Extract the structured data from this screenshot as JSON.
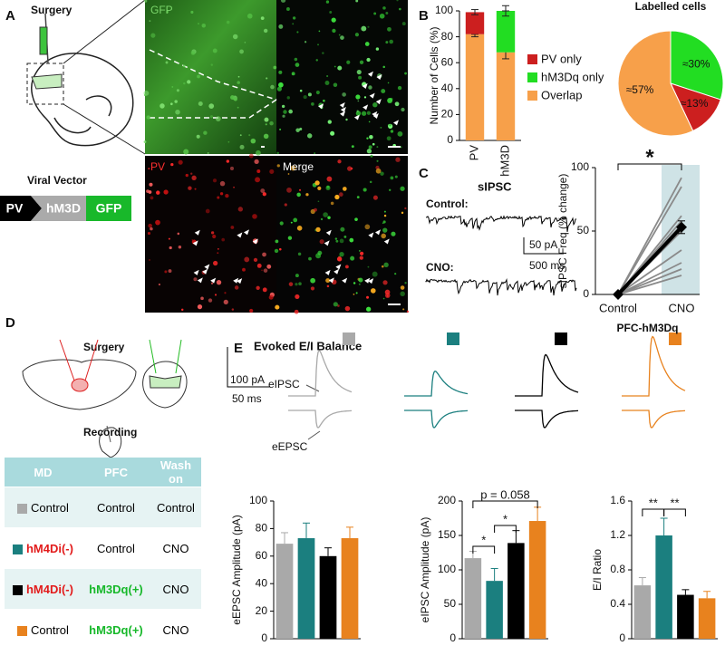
{
  "panel_labels": [
    "A",
    "B",
    "C",
    "D",
    "E"
  ],
  "panel_a": {
    "surgery": "Surgery",
    "images": [
      "GFP",
      "PV",
      "Merge"
    ],
    "viral_vector": {
      "title": "Viral Vector",
      "parts": [
        "PV",
        "hM3D",
        "GFP"
      ]
    }
  },
  "panel_c": {
    "title": "sIPSC",
    "traces": [
      "Control:",
      "CNO:"
    ],
    "scale": [
      "50 pA",
      "500 ms"
    ]
  },
  "panel_d": {
    "surgery": "Surgery",
    "recording": "Recording",
    "table": {
      "header": [
        "MD",
        "PFC",
        "Wash on"
      ],
      "rows": [
        [
          "Control",
          "Control",
          "Control"
        ],
        [
          "hM4Di(-)",
          "Control",
          "CNO"
        ],
        [
          "hM4Di(-)",
          "hM3Dq(+)",
          "CNO"
        ],
        [
          "Control",
          "hM3Dq(+)",
          "CNO"
        ]
      ]
    }
  },
  "panel_e": {
    "title": "Evoked E/I Balance",
    "trace_labels": [
      "eIPSC",
      "eEPSC"
    ],
    "scale": [
      "100 pA",
      "50 ms"
    ]
  },
  "chart_data": [
    {
      "type": "stacked_bar",
      "ylabel": "Number of Cells (%)",
      "categories": [
        "PV",
        "hM3D"
      ],
      "series": [
        {
          "name": "PV only",
          "color": "#cc1f1f",
          "values": [
            17,
            0
          ],
          "errors": [
            2,
            0
          ]
        },
        {
          "name": "hM3Dq only",
          "color": "#22dd22",
          "values": [
            0,
            32
          ],
          "errors": [
            0,
            4
          ]
        },
        {
          "name": "Overlap",
          "color": "#f7a04a",
          "values": [
            82,
            68
          ],
          "errors": [
            2,
            5
          ]
        }
      ],
      "ylim": [
        0,
        100
      ],
      "yticks": [
        0,
        20,
        40,
        60,
        80,
        100
      ]
    },
    {
      "type": "pie",
      "title": "Labelled cells",
      "values": [
        30,
        13,
        57
      ],
      "value_labels": [
        "≈30%",
        "≈13%",
        "≈57%"
      ],
      "colors": [
        "#22dd22",
        "#cc1f1f",
        "#f7a04a"
      ]
    },
    {
      "type": "line",
      "ylabel": "sIPSC Freq (% change)",
      "xlabel": "PFC-hM3Dq",
      "categories": [
        "Control",
        "CNO"
      ],
      "annotation": "*",
      "series": [
        {
          "color": "#8a8a8a",
          "values": [
            0,
            92
          ]
        },
        {
          "color": "#8a8a8a",
          "values": [
            0,
            85
          ]
        },
        {
          "color": "#8a8a8a",
          "values": [
            0,
            62
          ]
        },
        {
          "color": "#8a8a8a",
          "values": [
            0,
            58
          ]
        },
        {
          "color": "#8a8a8a",
          "values": [
            0,
            55
          ]
        },
        {
          "color": "#8a8a8a",
          "values": [
            0,
            50
          ]
        },
        {
          "color": "#8a8a8a",
          "values": [
            0,
            35
          ]
        },
        {
          "color": "#8a8a8a",
          "values": [
            0,
            25
          ]
        },
        {
          "color": "#8a8a8a",
          "values": [
            0,
            20
          ]
        },
        {
          "color": "#8a8a8a",
          "values": [
            0,
            15
          ]
        },
        {
          "color": "#000000",
          "values": [
            0,
            53
          ],
          "errors": [
            0,
            5
          ]
        }
      ],
      "ylim": [
        0,
        100
      ],
      "yticks": [
        0,
        50,
        100
      ]
    },
    {
      "type": "bar",
      "ylabel": "eEPSC Amplitude (pA)",
      "values": [
        69,
        73,
        60,
        73
      ],
      "errors": [
        8,
        11,
        6,
        8
      ],
      "colors": [
        "#a9a9a9",
        "#1b7f7f",
        "#000000",
        "#e8821e"
      ],
      "ylim": [
        0,
        100
      ],
      "yticks": [
        0,
        20,
        40,
        60,
        80,
        100
      ],
      "annotations": []
    },
    {
      "type": "bar",
      "ylabel": "eIPSC Amplitude (pA)",
      "values": [
        117,
        84,
        139,
        171
      ],
      "errors": [
        10,
        18,
        18,
        20
      ],
      "colors": [
        "#a9a9a9",
        "#1b7f7f",
        "#000000",
        "#e8821e"
      ],
      "ylim": [
        0,
        200
      ],
      "yticks": [
        0,
        50,
        100,
        150,
        200
      ],
      "annotations": [
        "*",
        "*",
        "p = 0.058"
      ]
    },
    {
      "type": "bar",
      "ylabel": "E/I Ratio",
      "values": [
        0.62,
        1.2,
        0.51,
        0.47
      ],
      "errors": [
        0.09,
        0.2,
        0.06,
        0.08
      ],
      "colors": [
        "#a9a9a9",
        "#1b7f7f",
        "#000000",
        "#e8821e"
      ],
      "ylim": [
        0,
        1.6
      ],
      "yticks": [
        0,
        0.4,
        0.8,
        1.2,
        1.6
      ],
      "annotations": [
        "**",
        "**"
      ]
    }
  ]
}
